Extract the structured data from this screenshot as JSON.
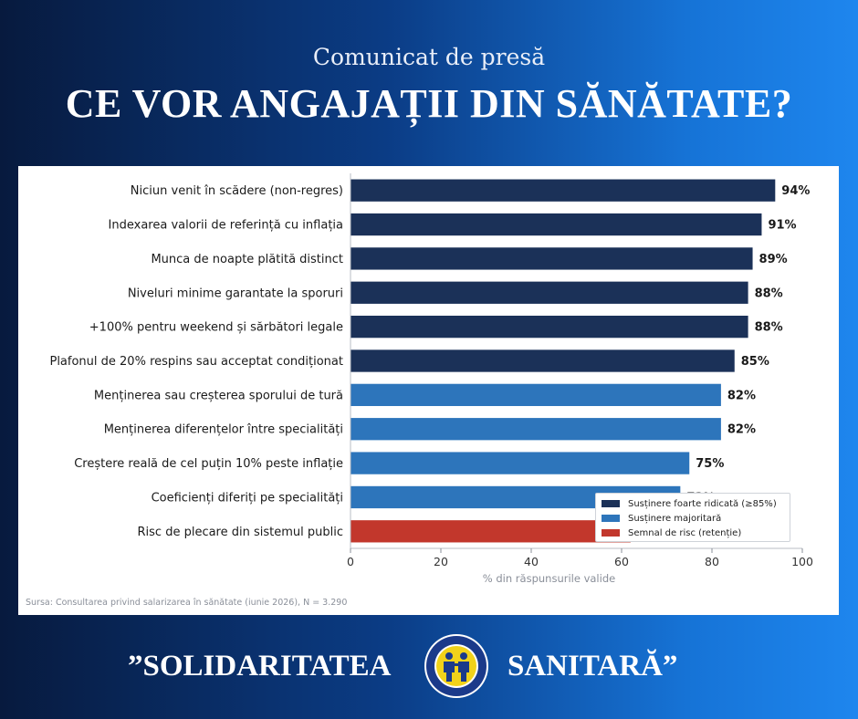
{
  "header": {
    "subtitle": "Comunicat de presă",
    "title": "CE VOR ANGAJAȚII DIN SĂNĂTATE?"
  },
  "chart_data": {
    "type": "bar",
    "orientation": "horizontal",
    "categories": [
      "Niciun venit în scădere (non-regres)",
      "Indexarea valorii de referință cu inflația",
      "Munca de noapte plătită distinct",
      "Niveluri minime garantate la sporuri",
      "+100% pentru weekend și sărbători legale",
      "Plafonul de 20% respins sau acceptat condiționat",
      "Menținerea sau creșterea sporului de tură",
      "Menținerea diferențelor între specialități",
      "Creștere reală de cel puțin 10% peste inflație",
      "Coeficienți diferiți pe specialități",
      "Risc de plecare din sistemul public"
    ],
    "values": [
      94,
      91,
      89,
      88,
      88,
      85,
      82,
      82,
      75,
      73,
      62
    ],
    "value_labels": [
      "94%",
      "91%",
      "89%",
      "88%",
      "88%",
      "85%",
      "82%",
      "82%",
      "75%",
      "73%",
      ""
    ],
    "groups": [
      "very_high",
      "very_high",
      "very_high",
      "very_high",
      "very_high",
      "very_high",
      "majority",
      "majority",
      "majority",
      "majority",
      "risk"
    ],
    "group_colors": {
      "very_high": "#1b3158",
      "majority": "#2d75bb",
      "risk": "#c2372c"
    },
    "xlabel": "% din răspunsurile valide",
    "xlim": [
      0,
      100
    ],
    "xticks": [
      "0",
      "20",
      "40",
      "60",
      "80",
      "100"
    ],
    "grid": false,
    "legend_position": "lower-right",
    "legend": [
      {
        "group": "very_high",
        "label": "Susținere foarte ridicată (≥85%)"
      },
      {
        "group": "majority",
        "label": "Susținere majoritară"
      },
      {
        "group": "risk",
        "label": "Semnal de risc (retenție)"
      }
    ],
    "source": "Sursa: Consultarea privind salarizarea în sănătate (iunie 2026), N = 3.290"
  },
  "footer": {
    "left": "”SOLIDARITATEA",
    "right": "SANITARĂ”"
  },
  "logo": {
    "icon": "two-people-logo-icon",
    "ring_color": "#f2d21a",
    "inner_color": "#1b3a8a"
  }
}
